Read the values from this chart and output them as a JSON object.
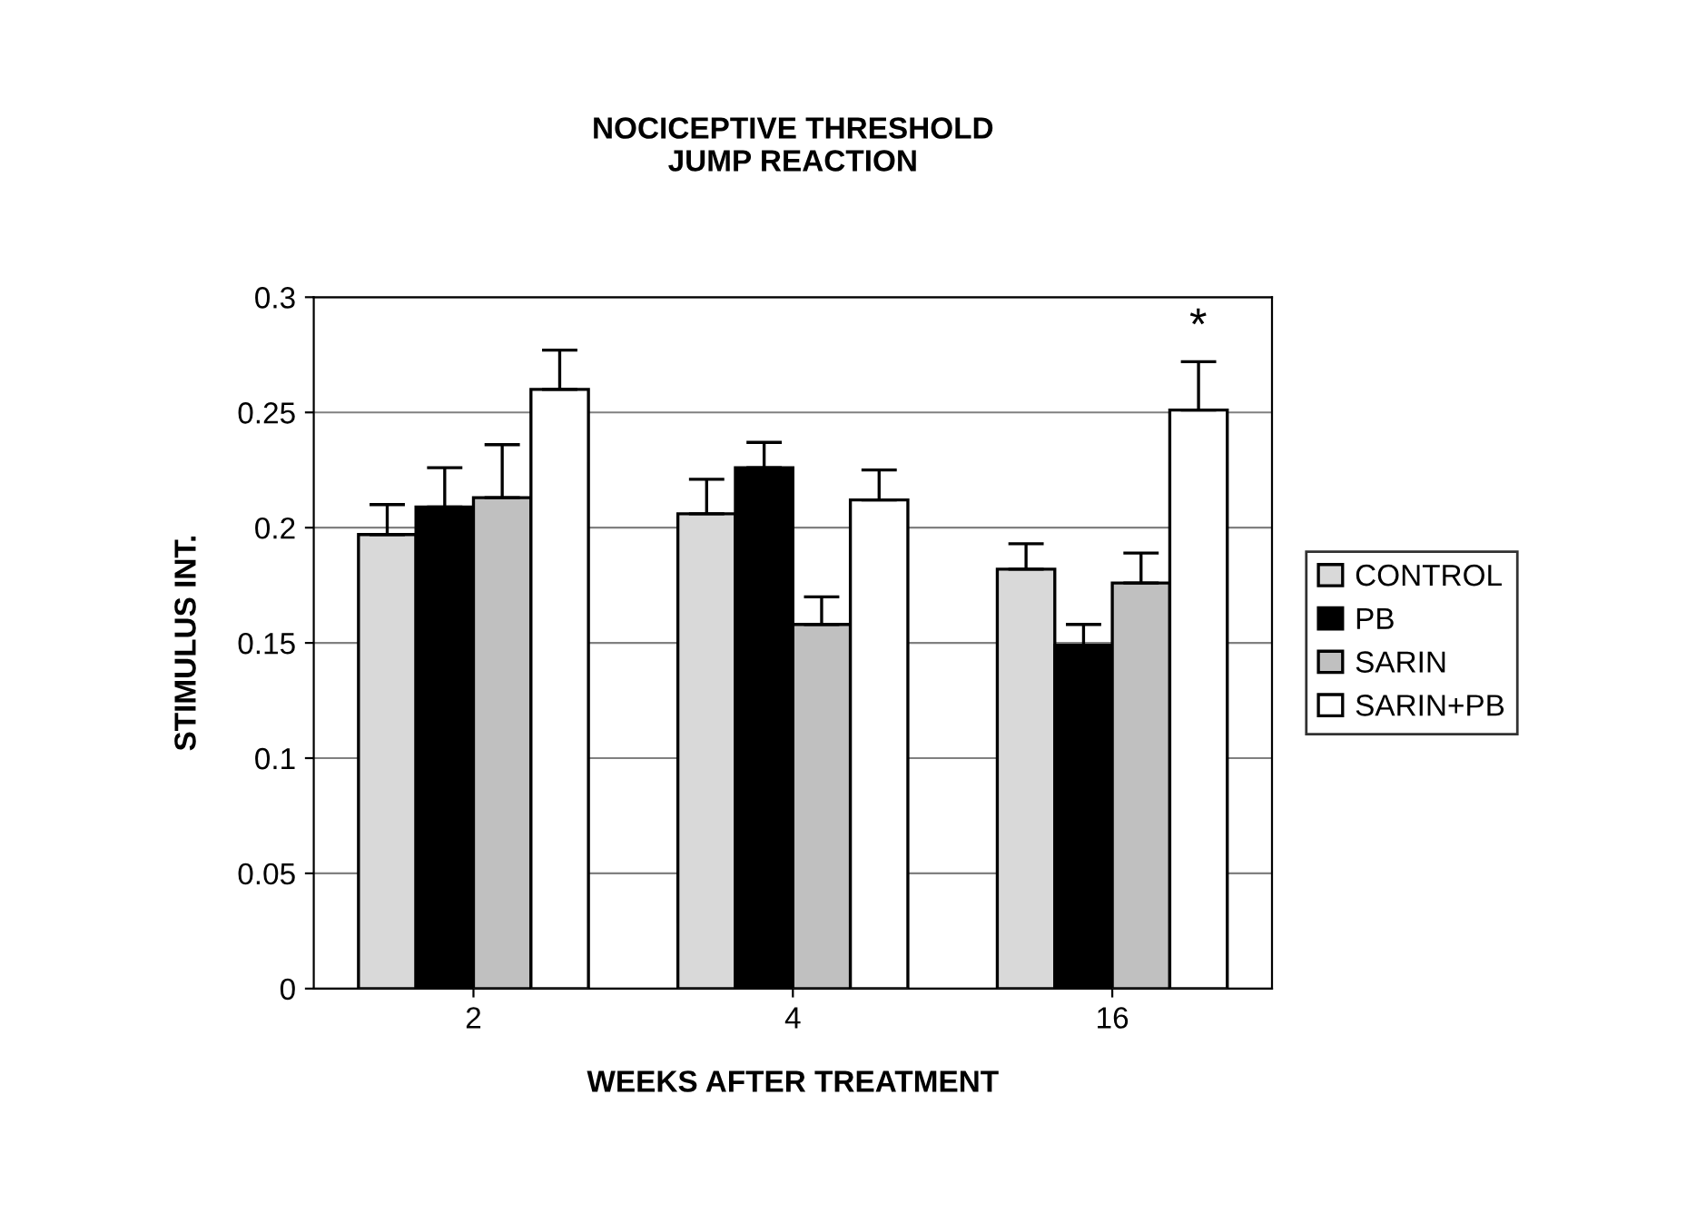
{
  "chart_data": {
    "type": "bar",
    "title": "NOCICEPTIVE THRESHOLD\nJUMP REACTION",
    "xlabel": "WEEKS AFTER TREATMENT",
    "ylabel": "STIMULUS INT.",
    "categories": [
      "2",
      "4",
      "16"
    ],
    "series": [
      {
        "name": "CONTROL",
        "color": "#d9d9d9",
        "values": [
          0.197,
          0.206,
          0.182
        ],
        "errors": [
          [
            0.197,
            0.21
          ],
          [
            0.206,
            0.221
          ],
          [
            0.182,
            0.193
          ]
        ]
      },
      {
        "name": "PB",
        "color": "#000000",
        "values": [
          0.209,
          0.226,
          0.149
        ],
        "errors": [
          [
            0.209,
            0.226
          ],
          [
            0.226,
            0.237
          ],
          [
            0.149,
            0.158
          ]
        ]
      },
      {
        "name": "SARIN",
        "color": "#c0c0c0",
        "values": [
          0.213,
          0.158,
          0.176
        ],
        "errors": [
          [
            0.213,
            0.236
          ],
          [
            0.158,
            0.17
          ],
          [
            0.176,
            0.189
          ]
        ]
      },
      {
        "name": "SARIN+PB",
        "color": "#ffffff",
        "values": [
          0.26,
          0.212,
          0.251
        ],
        "errors": [
          [
            0.26,
            0.277
          ],
          [
            0.212,
            0.225
          ],
          [
            0.251,
            0.272
          ]
        ]
      }
    ],
    "annotations": [
      "*"
    ],
    "ylim": [
      0,
      0.3
    ],
    "yticks": [
      {
        "value": 0,
        "label": "0"
      },
      0.05,
      0.1,
      0.15,
      0.2,
      0.25,
      0.3
    ],
    "grid": "y",
    "legend": "right"
  }
}
